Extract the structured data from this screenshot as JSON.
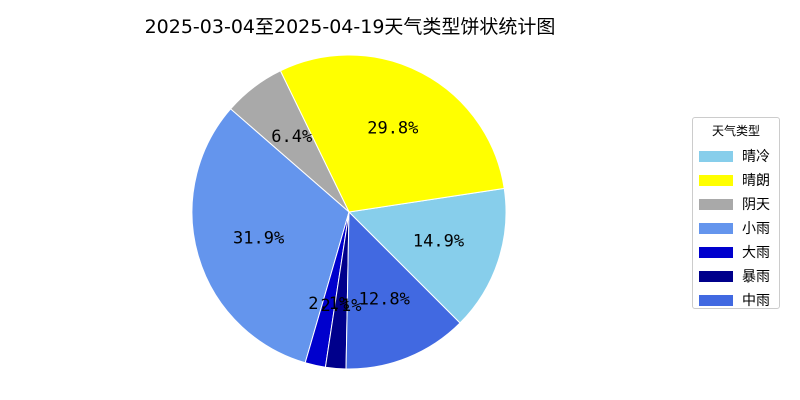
{
  "chart_data": {
    "type": "pie",
    "title": "2025-03-04至2025-04-19天气类型饼状统计图",
    "legend_title": "天气类型",
    "legend_position": "right",
    "categories": [
      "晴冷",
      "晴朗",
      "阴天",
      "小雨",
      "大雨",
      "暴雨",
      "中雨"
    ],
    "values": [
      14.9,
      29.8,
      6.4,
      31.9,
      2.1,
      2.1,
      12.8
    ],
    "labels": [
      "14.9%",
      "29.8%",
      "6.4%",
      "31.9%",
      "2.1%",
      "2.1%",
      "12.8%"
    ],
    "colors": [
      "#87CEEB",
      "#FFFF00",
      "#A9A9A9",
      "#6495ED",
      "#0000CD",
      "#00008B",
      "#4169E1"
    ]
  }
}
